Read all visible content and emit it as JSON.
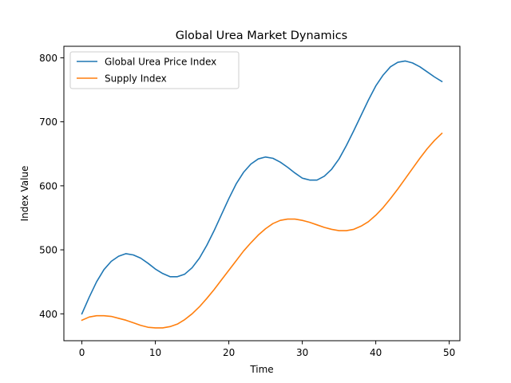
{
  "chart_data": {
    "type": "line",
    "title": "Global Urea Market Dynamics",
    "xlabel": "Time",
    "ylabel": "Index Value",
    "xlim": [
      -2.45,
      51.45
    ],
    "ylim": [
      358,
      818
    ],
    "xticks": [
      0,
      10,
      20,
      30,
      40,
      50
    ],
    "yticks": [
      400,
      500,
      600,
      700,
      800
    ],
    "grid": false,
    "legend_position": "top-left",
    "x": [
      0,
      1,
      2,
      3,
      4,
      5,
      6,
      7,
      8,
      9,
      10,
      11,
      12,
      13,
      14,
      15,
      16,
      17,
      18,
      19,
      20,
      21,
      22,
      23,
      24,
      25,
      26,
      27,
      28,
      29,
      30,
      31,
      32,
      33,
      34,
      35,
      36,
      37,
      38,
      39,
      40,
      41,
      42,
      43,
      44,
      45,
      46,
      47,
      48,
      49
    ],
    "series": [
      {
        "name": "Global Urea Price Index",
        "color": "#1f77b4",
        "values": [
          400,
          426,
          450,
          469,
          482,
          490,
          494,
          492,
          487,
          479,
          470,
          463,
          458,
          458,
          462,
          472,
          487,
          507,
          530,
          555,
          580,
          603,
          621,
          634,
          642,
          645,
          643,
          637,
          629,
          620,
          612,
          609,
          609,
          615,
          626,
          642,
          663,
          686,
          710,
          734,
          756,
          773,
          786,
          793,
          795,
          792,
          786,
          778,
          770,
          763
        ]
      },
      {
        "name": "Supply Index",
        "color": "#ff7f0e",
        "values": [
          390,
          395,
          397,
          397,
          396,
          393,
          390,
          386,
          382,
          379,
          378,
          378,
          380,
          384,
          391,
          400,
          411,
          424,
          438,
          453,
          468,
          483,
          498,
          511,
          523,
          533,
          541,
          546,
          548,
          548,
          546,
          543,
          539,
          535,
          532,
          530,
          530,
          532,
          537,
          544,
          554,
          566,
          580,
          595,
          611,
          627,
          643,
          658,
          671,
          682
        ]
      }
    ]
  }
}
